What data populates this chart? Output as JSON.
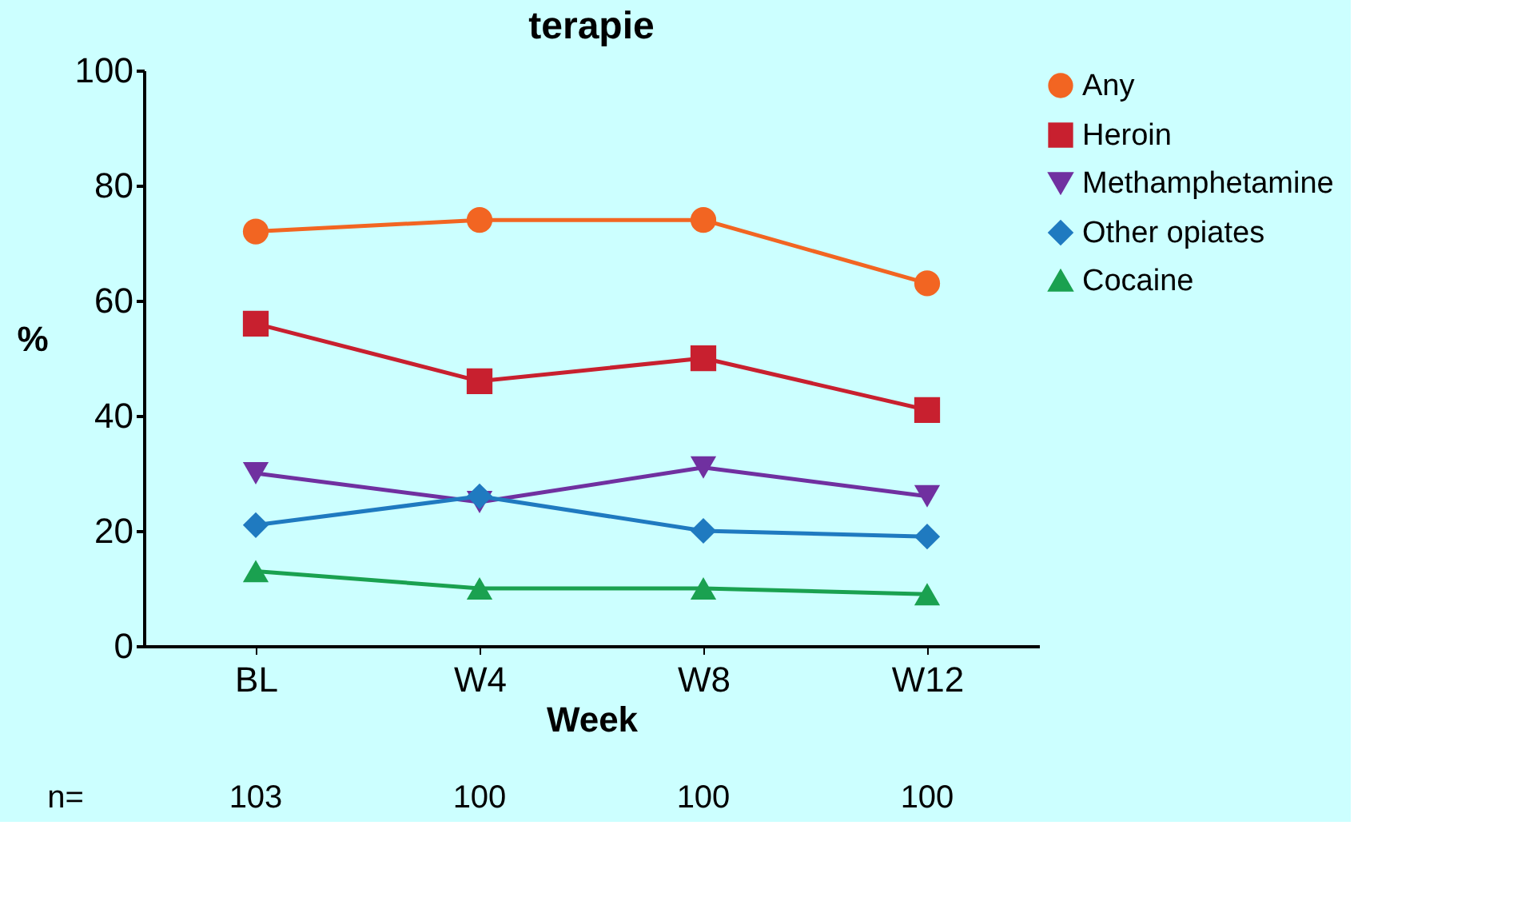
{
  "chart_data": {
    "type": "line",
    "title": "terapie",
    "xlabel": "Week",
    "ylabel": "%",
    "categories": [
      "BL",
      "W4",
      "W8",
      "W12"
    ],
    "series": [
      {
        "name": "Any",
        "color": "#f26522",
        "marker": "circle",
        "values": [
          72,
          74,
          74,
          63
        ]
      },
      {
        "name": "Heroin",
        "color": "#c8202f",
        "marker": "square",
        "values": [
          56,
          46,
          50,
          41
        ]
      },
      {
        "name": "Methamphetamine",
        "color": "#7030a0",
        "marker": "triangle-down",
        "values": [
          30,
          25,
          31,
          26
        ]
      },
      {
        "name": "Other opiates",
        "color": "#1f7ac0",
        "marker": "diamond",
        "values": [
          21,
          26,
          20,
          19
        ]
      },
      {
        "name": "Cocaine",
        "color": "#1aa150",
        "marker": "triangle",
        "values": [
          13,
          10,
          10,
          9
        ]
      }
    ],
    "ylim": [
      0,
      100
    ],
    "yticks": [
      0,
      20,
      40,
      60,
      80,
      100
    ],
    "grid": false,
    "legend": "right",
    "annotations": [
      "n=",
      "103",
      "100",
      "100",
      "100"
    ]
  }
}
